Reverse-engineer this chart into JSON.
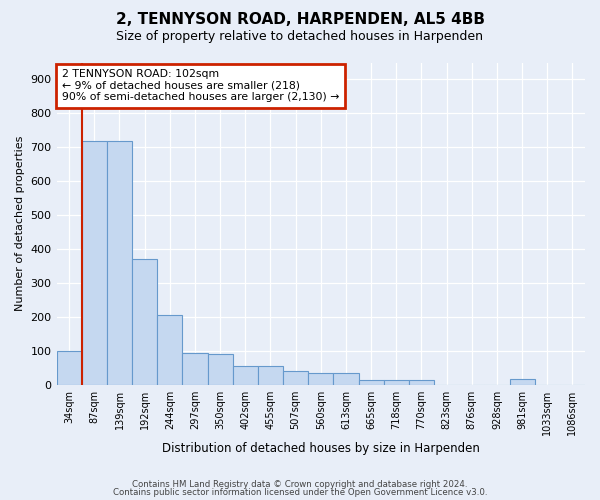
{
  "title": "2, TENNYSON ROAD, HARPENDEN, AL5 4BB",
  "subtitle": "Size of property relative to detached houses in Harpenden",
  "xlabel": "Distribution of detached houses by size in Harpenden",
  "ylabel": "Number of detached properties",
  "bar_labels": [
    "34sqm",
    "87sqm",
    "139sqm",
    "192sqm",
    "244sqm",
    "297sqm",
    "350sqm",
    "402sqm",
    "455sqm",
    "507sqm",
    "560sqm",
    "613sqm",
    "665sqm",
    "718sqm",
    "770sqm",
    "823sqm",
    "876sqm",
    "928sqm",
    "981sqm",
    "1033sqm",
    "1086sqm"
  ],
  "bar_values": [
    100,
    718,
    718,
    370,
    205,
    95,
    90,
    55,
    55,
    40,
    35,
    35,
    14,
    14,
    14,
    0,
    0,
    0,
    18,
    0,
    0
  ],
  "bar_color": "#c5d8f0",
  "bar_edge_color": "#6699cc",
  "red_line_color": "#cc2200",
  "annotation_text": "2 TENNYSON ROAD: 102sqm\n← 9% of detached houses are smaller (218)\n90% of semi-detached houses are larger (2,130) →",
  "annotation_box_color": "#ffffff",
  "annotation_box_edge": "#cc2200",
  "ylim": [
    0,
    950
  ],
  "yticks": [
    0,
    100,
    200,
    300,
    400,
    500,
    600,
    700,
    800,
    900
  ],
  "footer1": "Contains HM Land Registry data © Crown copyright and database right 2024.",
  "footer2": "Contains public sector information licensed under the Open Government Licence v3.0.",
  "bg_color": "#e8eef8"
}
